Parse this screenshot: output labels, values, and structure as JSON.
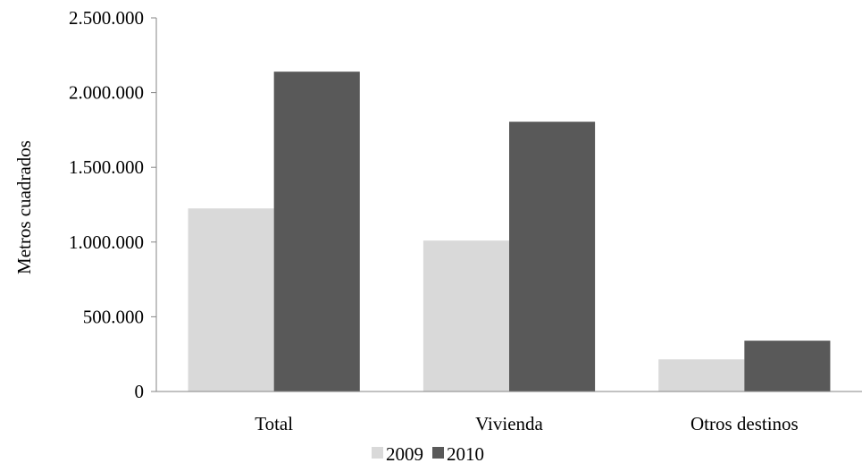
{
  "chart_data": {
    "type": "bar",
    "title": "",
    "xlabel": "",
    "ylabel": "Metros  cuadrados",
    "categories": [
      "Total",
      "Vivienda",
      "Otros destinos"
    ],
    "series": [
      {
        "name": "2009",
        "values": [
          1225000,
          1010000,
          215000
        ],
        "color": "#d9d9d9"
      },
      {
        "name": "2010",
        "values": [
          2140000,
          1805000,
          340000
        ],
        "color": "#595959"
      }
    ],
    "ylim": [
      0,
      2500000
    ],
    "yticks": [
      0,
      500000,
      1000000,
      1500000,
      2000000,
      2500000
    ],
    "ytick_labels": [
      "0",
      "500.000",
      "1.000.000",
      "1.500.000",
      "2.000.000",
      "2.500.000"
    ],
    "grid": false,
    "legend_position": "bottom"
  }
}
